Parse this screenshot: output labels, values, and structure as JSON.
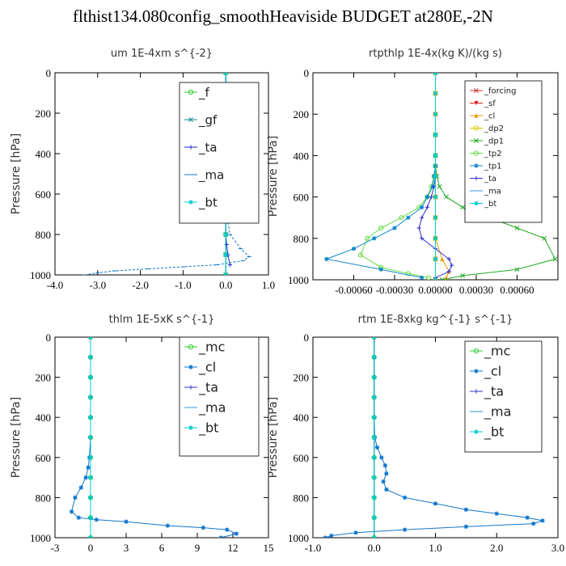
{
  "suptitle": "flthist134.080config_smoothHeaviside  BUDGET at280E,-2N",
  "chart_data": [
    {
      "type": "line",
      "title": "um   1E-4xm s^{-2}",
      "ylabel": "Pressure [hPa]",
      "xlim": [
        -4.0,
        1.0
      ],
      "ylim": [
        1000,
        0
      ],
      "xticks": [
        -4.0,
        -3.0,
        -2.0,
        -1.0,
        0.0,
        1.0
      ],
      "xticklabels": [
        "-4.0",
        "-3.0",
        "-2.0",
        "-1.0",
        "0.0",
        "1.0"
      ],
      "yticks": [
        0,
        200,
        400,
        600,
        800,
        1000
      ],
      "yticklabels": [
        "0",
        "200",
        "400",
        "600",
        "800",
        "1000"
      ],
      "legend_location": "top-right",
      "series": [
        {
          "name": "_f",
          "color": "#33cc33",
          "marker": "o",
          "x": [
            0,
            0,
            0,
            0,
            0,
            0,
            0,
            0,
            0,
            0,
            0
          ],
          "y": [
            0,
            100,
            200,
            300,
            400,
            500,
            600,
            700,
            800,
            900,
            1000
          ]
        },
        {
          "name": "_gf",
          "color": "#1a8a8a",
          "marker": "x",
          "x": [
            0,
            0,
            0,
            0,
            0,
            0,
            0,
            0,
            0,
            0,
            0
          ],
          "y": [
            0,
            100,
            200,
            300,
            400,
            500,
            600,
            700,
            800,
            900,
            1000
          ]
        },
        {
          "name": "_ta",
          "color": "#2222cc",
          "marker": "+",
          "x": [
            0,
            0,
            0,
            0,
            0,
            0,
            0,
            0,
            0,
            0.02,
            0.05,
            0.1
          ],
          "y": [
            0,
            100,
            200,
            300,
            400,
            500,
            600,
            700,
            800,
            850,
            900,
            950
          ]
        },
        {
          "name": "_ma",
          "color": "#1177cc",
          "marker": "-",
          "x": [
            0,
            0,
            0,
            0,
            0,
            0,
            0,
            0.02,
            0.1,
            0.35,
            0.55,
            0.4,
            -0.2,
            -1.0,
            -1.8,
            -2.6,
            -3.0,
            -3.3
          ],
          "y": [
            0,
            100,
            200,
            300,
            400,
            500,
            600,
            700,
            800,
            870,
            910,
            930,
            950,
            960,
            970,
            980,
            990,
            1000
          ]
        },
        {
          "name": "_bt",
          "color": "#00cccc",
          "marker": "*",
          "x": [
            0,
            0,
            0,
            0,
            0,
            0,
            0,
            0,
            0,
            0,
            0
          ],
          "y": [
            0,
            100,
            200,
            300,
            400,
            500,
            600,
            700,
            800,
            900,
            1000
          ]
        }
      ]
    },
    {
      "type": "line",
      "title": "rtpthlp   1E-4x(kg K)/(kg s)",
      "ylabel": "Pressure [hPa]",
      "xlim": [
        -0.0009,
        0.0009
      ],
      "ylim": [
        1000,
        0
      ],
      "xticks": [
        -0.0006,
        -0.0003,
        0.0,
        0.0003,
        0.0006
      ],
      "xticklabels": [
        "-0.00060",
        "-0.00030",
        "0.00000",
        "0.00030",
        "0.00060"
      ],
      "yticks": [
        0,
        200,
        400,
        600,
        800,
        1000
      ],
      "yticklabels": [
        "0",
        "200",
        "400",
        "600",
        "800",
        "1000"
      ],
      "legend_location": "top-right",
      "series": [
        {
          "name": "_forcing",
          "color": "#cc3333",
          "marker": "x",
          "x": [
            0,
            0,
            0,
            0,
            0,
            0,
            0,
            0,
            0,
            0,
            0
          ],
          "y": [
            0,
            100,
            200,
            300,
            400,
            500,
            600,
            700,
            800,
            900,
            1000
          ]
        },
        {
          "name": "_sf",
          "color": "#dd2222",
          "marker": "v",
          "x": [
            0,
            0,
            0,
            0,
            0,
            0,
            0,
            0,
            0,
            0,
            0
          ],
          "y": [
            0,
            100,
            200,
            300,
            400,
            500,
            600,
            700,
            800,
            900,
            1000
          ]
        },
        {
          "name": "_cl",
          "color": "#ee9900",
          "marker": "^",
          "x": [
            0,
            0,
            0,
            0,
            0,
            0,
            0,
            0,
            0,
            5e-05,
            0.0001,
            8e-05
          ],
          "y": [
            0,
            100,
            200,
            300,
            400,
            500,
            600,
            700,
            800,
            900,
            960,
            990
          ]
        },
        {
          "name": "_dp2",
          "color": "#ddcc00",
          "marker": "o",
          "x": [
            0,
            0,
            0,
            0,
            0,
            0,
            0,
            0,
            0,
            0,
            0
          ],
          "y": [
            0,
            100,
            200,
            300,
            400,
            500,
            600,
            700,
            800,
            900,
            1000
          ]
        },
        {
          "name": "_dp1",
          "color": "#22aa22",
          "marker": "x",
          "x": [
            0,
            0,
            0,
            0,
            1e-05,
            3e-05,
            8e-05,
            0.0002,
            0.0004,
            0.0006,
            0.0008,
            0.00088,
            0.0006,
            0.0002,
            5e-05
          ],
          "y": [
            0,
            300,
            400,
            450,
            500,
            550,
            600,
            650,
            700,
            750,
            800,
            900,
            950,
            980,
            1000
          ]
        },
        {
          "name": "_tp2",
          "color": "#66dd44",
          "marker": "o",
          "x": [
            0,
            0,
            0,
            0,
            -1e-05,
            -3e-05,
            -6e-05,
            -0.00012,
            -0.00025,
            -0.0004,
            -0.0005,
            -0.00055,
            -0.0004,
            -0.0002,
            -5e-05
          ],
          "y": [
            0,
            300,
            400,
            450,
            500,
            550,
            600,
            650,
            700,
            750,
            800,
            880,
            940,
            970,
            990
          ]
        },
        {
          "name": "_tp1",
          "color": "#1188cc",
          "marker": "*",
          "x": [
            0,
            0,
            0,
            0,
            -1e-05,
            -2e-05,
            -6e-05,
            -0.0001,
            -0.0002,
            -0.0003,
            -0.00045,
            -0.0006,
            -0.0008,
            -0.0004,
            -0.0001
          ],
          "y": [
            0,
            300,
            400,
            450,
            500,
            550,
            600,
            650,
            700,
            750,
            800,
            850,
            900,
            950,
            990
          ]
        },
        {
          "name": "_ta",
          "color": "#3333cc",
          "marker": "+",
          "x": [
            0,
            0,
            0,
            0,
            -1e-05,
            -3e-05,
            -6e-05,
            -0.0001,
            -0.00012,
            -0.0001,
            0.0,
            0.0001,
            0.00012,
            0.0001,
            0.0
          ],
          "y": [
            0,
            300,
            400,
            500,
            550,
            600,
            650,
            700,
            750,
            800,
            850,
            900,
            930,
            960,
            990
          ]
        },
        {
          "name": "_ma",
          "color": "#3399dd",
          "marker": "-",
          "x": [
            0,
            0,
            0,
            0,
            0,
            0,
            0,
            0,
            0,
            0,
            0
          ],
          "y": [
            0,
            100,
            200,
            300,
            400,
            500,
            600,
            700,
            800,
            900,
            1000
          ]
        },
        {
          "name": "_bt",
          "color": "#00cccc",
          "marker": "*",
          "x": [
            0,
            0,
            0,
            0,
            0,
            0,
            0,
            0,
            0,
            0,
            0
          ],
          "y": [
            0,
            100,
            200,
            300,
            400,
            500,
            600,
            700,
            800,
            900,
            1000
          ]
        }
      ]
    },
    {
      "type": "line",
      "title": "thlm   1E-5xK s^{-1}",
      "ylabel": "Pressure [hPa]",
      "xlim": [
        -3,
        15
      ],
      "ylim": [
        1000,
        0
      ],
      "xticks": [
        -3,
        0,
        3,
        6,
        9,
        12,
        15
      ],
      "xticklabels": [
        "-3",
        "0",
        "3",
        "6",
        "9",
        "12",
        "15"
      ],
      "yticks": [
        0,
        200,
        400,
        600,
        800,
        1000
      ],
      "yticklabels": [
        "0",
        "200",
        "400",
        "600",
        "800",
        "1000"
      ],
      "legend_location": "top-right",
      "series": [
        {
          "name": "_mc",
          "color": "#33cc33",
          "marker": "o",
          "x": [
            0,
            0,
            0,
            0,
            0,
            0,
            0,
            0,
            0,
            0,
            0
          ],
          "y": [
            0,
            100,
            200,
            300,
            400,
            500,
            600,
            700,
            800,
            900,
            1000
          ]
        },
        {
          "name": "_cl",
          "color": "#1177cc",
          "marker": "*",
          "x": [
            0,
            0,
            0,
            0,
            0,
            0,
            -0.1,
            -0.2,
            -0.4,
            -0.8,
            -1.3,
            -1.6,
            -1.0,
            0.5,
            3.0,
            6.5,
            9.5,
            11.5,
            12.3,
            11.0
          ],
          "y": [
            0,
            100,
            200,
            300,
            400,
            500,
            600,
            650,
            700,
            750,
            800,
            870,
            900,
            910,
            920,
            940,
            950,
            960,
            980,
            1000
          ]
        },
        {
          "name": "_ta",
          "color": "#3333cc",
          "marker": "+",
          "x": [
            0,
            0,
            0,
            0,
            0,
            0,
            0,
            0,
            0,
            0,
            0
          ],
          "y": [
            0,
            100,
            200,
            300,
            400,
            500,
            600,
            700,
            800,
            900,
            1000
          ]
        },
        {
          "name": "_ma",
          "color": "#3399dd",
          "marker": "-",
          "x": [
            0,
            0,
            0,
            0,
            0,
            0,
            0,
            0,
            0,
            0,
            0
          ],
          "y": [
            0,
            100,
            200,
            300,
            400,
            500,
            600,
            700,
            800,
            900,
            1000
          ]
        },
        {
          "name": "_bt",
          "color": "#00cccc",
          "marker": "*",
          "x": [
            0,
            0,
            0,
            0,
            0,
            0,
            0,
            0,
            0,
            0,
            0
          ],
          "y": [
            0,
            100,
            200,
            300,
            400,
            500,
            600,
            700,
            800,
            900,
            1000
          ]
        }
      ]
    },
    {
      "type": "line",
      "title": "rtm   1E-8xkg kg^{-1} s^{-1}",
      "ylabel": "Pressure [hPa]",
      "xlim": [
        -1.0,
        3.0
      ],
      "ylim": [
        1000,
        0
      ],
      "xticks": [
        -1.0,
        0.0,
        1.0,
        2.0,
        3.0
      ],
      "xticklabels": [
        "-1.0",
        "0.0",
        "1.0",
        "2.0",
        "3.0"
      ],
      "yticks": [
        0,
        200,
        400,
        600,
        800,
        1000
      ],
      "yticklabels": [
        "0",
        "200",
        "400",
        "600",
        "800",
        "1000"
      ],
      "legend_location": "top-right",
      "series": [
        {
          "name": "_mc",
          "color": "#33cc33",
          "marker": "o",
          "x": [
            0,
            0,
            0,
            0,
            0,
            0,
            0,
            0,
            0,
            0,
            0
          ],
          "y": [
            0,
            100,
            200,
            300,
            400,
            500,
            600,
            700,
            800,
            900,
            1000
          ]
        },
        {
          "name": "_cl",
          "color": "#1177cc",
          "marker": "*",
          "x": [
            0,
            0,
            0,
            0,
            0,
            0.01,
            0.05,
            0.12,
            0.18,
            0.2,
            0.15,
            0.2,
            0.5,
            1.0,
            1.5,
            2.0,
            2.5,
            2.75,
            2.6,
            1.5,
            0.5,
            -0.3,
            -0.7,
            -0.8
          ],
          "y": [
            0,
            100,
            200,
            300,
            400,
            500,
            550,
            600,
            640,
            680,
            720,
            760,
            800,
            830,
            860,
            880,
            900,
            915,
            930,
            945,
            960,
            975,
            990,
            1000
          ]
        },
        {
          "name": "_ta",
          "color": "#3333cc",
          "marker": "+",
          "x": [
            0,
            0,
            0,
            0,
            0,
            0,
            0,
            0,
            0,
            0,
            0
          ],
          "y": [
            0,
            100,
            200,
            300,
            400,
            500,
            600,
            700,
            800,
            900,
            1000
          ]
        },
        {
          "name": "_ma",
          "color": "#3399dd",
          "marker": "-",
          "x": [
            0,
            0,
            0,
            0,
            0,
            0,
            0,
            0,
            0,
            0,
            0
          ],
          "y": [
            0,
            100,
            200,
            300,
            400,
            500,
            600,
            700,
            800,
            900,
            1000
          ]
        },
        {
          "name": "_bt",
          "color": "#00cccc",
          "marker": "*",
          "x": [
            0,
            0,
            0,
            0,
            0,
            0,
            0,
            0,
            0,
            0,
            0
          ],
          "y": [
            0,
            100,
            200,
            300,
            400,
            500,
            600,
            700,
            800,
            900,
            1000
          ]
        }
      ]
    }
  ]
}
